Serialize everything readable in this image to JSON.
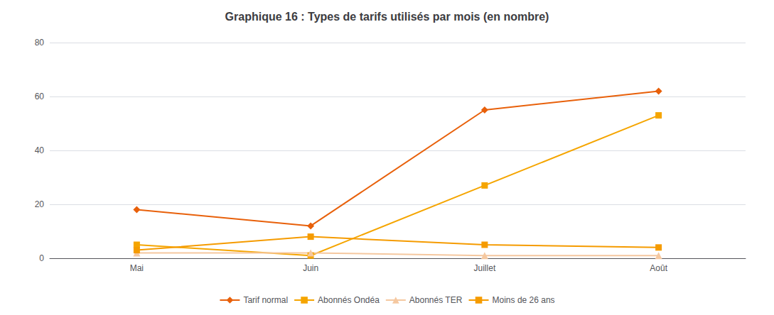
{
  "chart_data": {
    "type": "line",
    "title": "Graphique 16 : Types de tarifs utilisés par mois (en nombre)",
    "categories": [
      "Mai",
      "Juin",
      "Juillet",
      "Août"
    ],
    "series": [
      {
        "name": "Tarif normal",
        "color": "#E8600A",
        "marker": "diamond",
        "values": [
          18,
          12,
          55,
          62
        ]
      },
      {
        "name": "Abonnés Ondéa",
        "color": "#F5A500",
        "marker": "square",
        "values": [
          5,
          1,
          27,
          53
        ]
      },
      {
        "name": "Abonnés TER",
        "color": "#F5C8A0",
        "marker": "triangle",
        "values": [
          2,
          2,
          1,
          1
        ]
      },
      {
        "name": "Moins de 26 ans",
        "color": "#F59B00",
        "marker": "square",
        "values": [
          3,
          8,
          5,
          4
        ]
      }
    ],
    "ylim": [
      0,
      80
    ],
    "yticks": [
      0,
      20,
      40,
      60,
      80
    ],
    "grid": true,
    "legend": "bottom"
  }
}
